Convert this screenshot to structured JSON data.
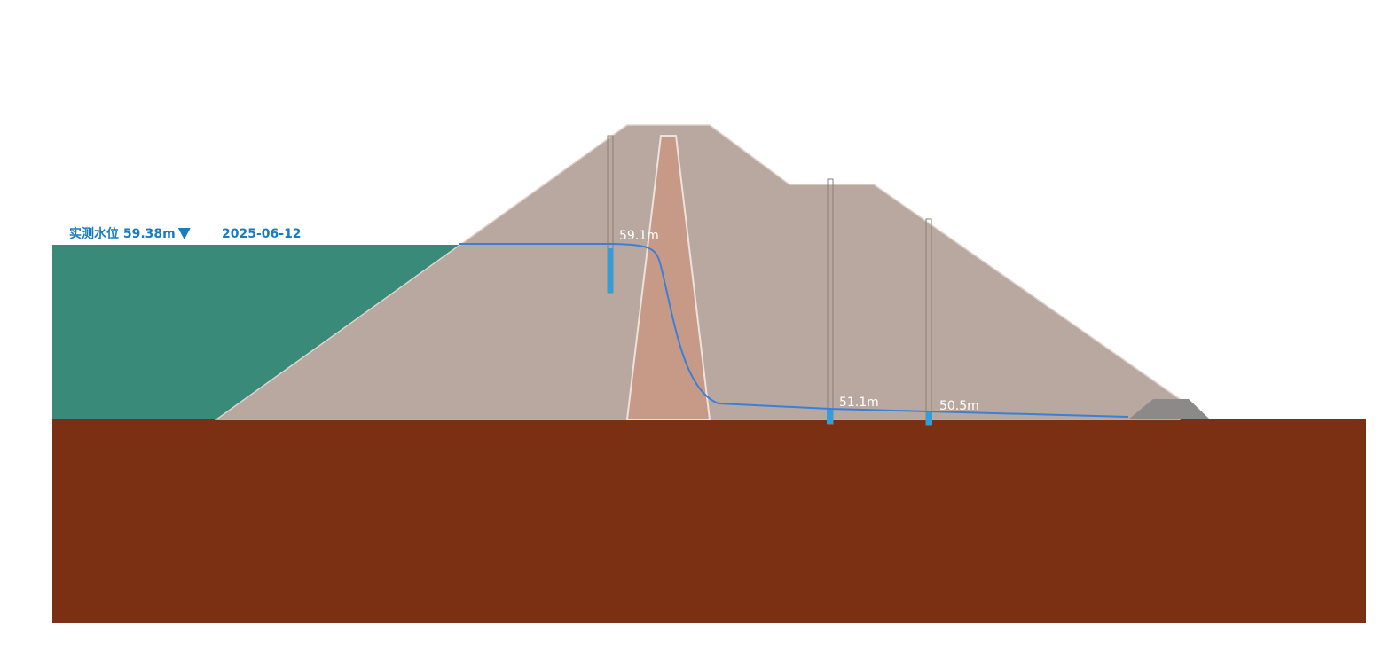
{
  "water_level": {
    "label": "实测水位 59.38m",
    "date": "2025-06-12"
  },
  "piezometers": [
    {
      "label": "59.1m"
    },
    {
      "label": "51.1m"
    },
    {
      "label": "50.5m"
    }
  ]
}
